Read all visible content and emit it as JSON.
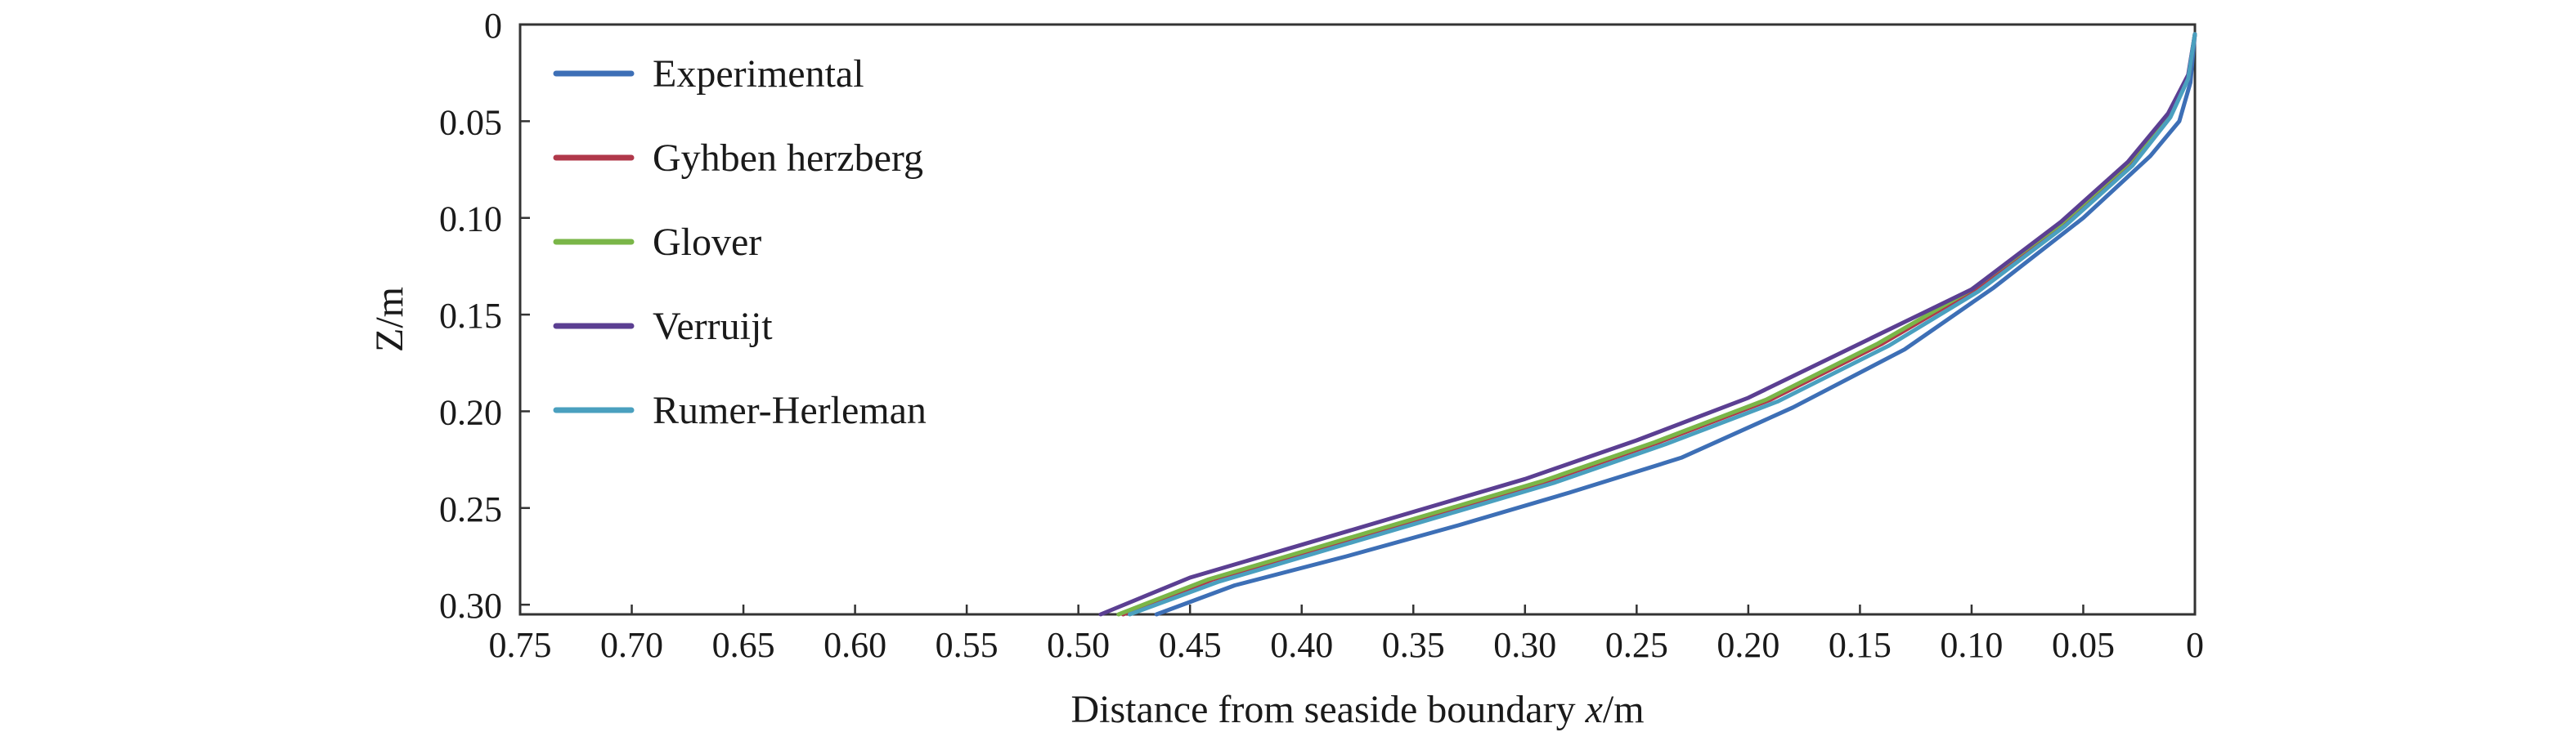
{
  "chart_data": {
    "type": "line",
    "xlabel_prefix": "Distance from seaside boundary ",
    "xlabel_var": "x",
    "xlabel_unit": "/m",
    "ylabel": "Z/m",
    "xlim": [
      0.75,
      0
    ],
    "ylim": [
      0,
      0.305
    ],
    "x_reversed": true,
    "y_reversed": true,
    "x_ticks": [
      "0.75",
      "0.70",
      "0.65",
      "0.60",
      "0.55",
      "0.50",
      "0.45",
      "0.40",
      "0.35",
      "0.30",
      "0.25",
      "0.20",
      "0.15",
      "0.10",
      "0.05",
      "0"
    ],
    "x_tick_values": [
      0.75,
      0.7,
      0.65,
      0.6,
      0.55,
      0.5,
      0.45,
      0.4,
      0.35,
      0.3,
      0.25,
      0.2,
      0.15,
      0.1,
      0.05,
      0
    ],
    "y_ticks": [
      "0",
      "0.05",
      "0.10",
      "0.15",
      "0.20",
      "0.25",
      "0.30"
    ],
    "y_tick_values": [
      0,
      0.05,
      0.1,
      0.15,
      0.2,
      0.25,
      0.3
    ],
    "grid": false,
    "legend_position": "top-left",
    "series": [
      {
        "name": "Experimental",
        "color": "#3d6fb6",
        "points": [
          [
            0.465,
            0.305
          ],
          [
            0.43,
            0.29
          ],
          [
            0.38,
            0.275
          ],
          [
            0.33,
            0.259
          ],
          [
            0.28,
            0.242
          ],
          [
            0.23,
            0.224
          ],
          [
            0.18,
            0.198
          ],
          [
            0.13,
            0.168
          ],
          [
            0.09,
            0.136
          ],
          [
            0.05,
            0.1
          ],
          [
            0.02,
            0.068
          ],
          [
            0.007,
            0.05
          ],
          [
            0.002,
            0.03
          ],
          [
            0.0,
            0.005
          ]
        ]
      },
      {
        "name": "Gyhben herzberg",
        "color": "#b0384a",
        "points": [
          [
            0.48,
            0.305
          ],
          [
            0.44,
            0.287
          ],
          [
            0.39,
            0.27
          ],
          [
            0.34,
            0.253
          ],
          [
            0.29,
            0.236
          ],
          [
            0.24,
            0.216
          ],
          [
            0.19,
            0.194
          ],
          [
            0.14,
            0.165
          ],
          [
            0.1,
            0.138
          ],
          [
            0.06,
            0.104
          ],
          [
            0.03,
            0.073
          ],
          [
            0.012,
            0.048
          ],
          [
            0.003,
            0.028
          ],
          [
            0.0,
            0.005
          ]
        ]
      },
      {
        "name": "Glover",
        "color": "#7ab648",
        "points": [
          [
            0.482,
            0.305
          ],
          [
            0.442,
            0.287
          ],
          [
            0.392,
            0.27
          ],
          [
            0.342,
            0.253
          ],
          [
            0.292,
            0.236
          ],
          [
            0.242,
            0.216
          ],
          [
            0.192,
            0.194
          ],
          [
            0.142,
            0.165
          ],
          [
            0.1,
            0.137
          ],
          [
            0.06,
            0.103
          ],
          [
            0.03,
            0.072
          ],
          [
            0.012,
            0.047
          ],
          [
            0.003,
            0.027
          ],
          [
            0.0,
            0.005
          ]
        ]
      },
      {
        "name": "Verruijt",
        "color": "#5b3f92",
        "points": [
          [
            0.49,
            0.305
          ],
          [
            0.45,
            0.286
          ],
          [
            0.4,
            0.269
          ],
          [
            0.35,
            0.252
          ],
          [
            0.3,
            0.235
          ],
          [
            0.25,
            0.215
          ],
          [
            0.2,
            0.193
          ],
          [
            0.15,
            0.165
          ],
          [
            0.1,
            0.137
          ],
          [
            0.06,
            0.102
          ],
          [
            0.03,
            0.071
          ],
          [
            0.012,
            0.046
          ],
          [
            0.003,
            0.026
          ],
          [
            0.0,
            0.005
          ]
        ]
      },
      {
        "name": "Rumer-Herleman",
        "color": "#4aa0bf",
        "points": [
          [
            0.477,
            0.305
          ],
          [
            0.437,
            0.288
          ],
          [
            0.387,
            0.271
          ],
          [
            0.337,
            0.254
          ],
          [
            0.287,
            0.237
          ],
          [
            0.237,
            0.217
          ],
          [
            0.187,
            0.195
          ],
          [
            0.137,
            0.166
          ],
          [
            0.097,
            0.138
          ],
          [
            0.058,
            0.104
          ],
          [
            0.028,
            0.073
          ],
          [
            0.011,
            0.048
          ],
          [
            0.003,
            0.028
          ],
          [
            0.0,
            0.005
          ]
        ]
      }
    ]
  }
}
